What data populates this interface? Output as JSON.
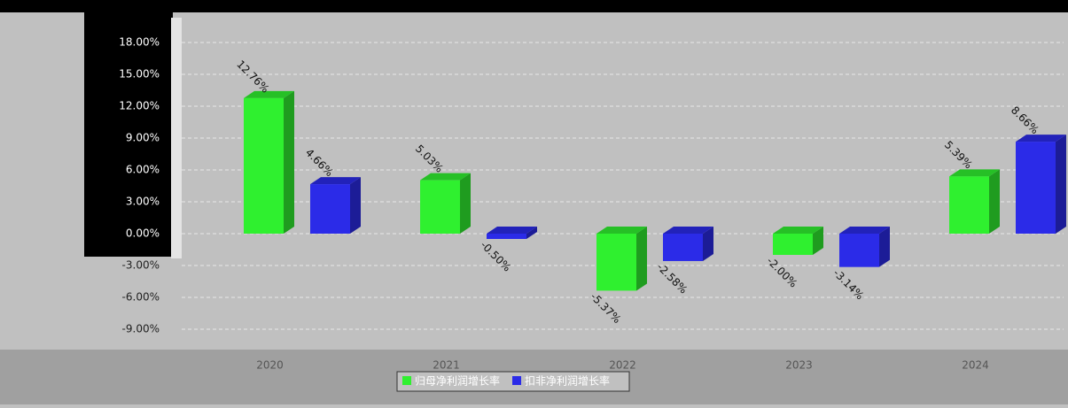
{
  "chart_data": {
    "type": "bar",
    "categories": [
      "2020",
      "2021",
      "2022",
      "2023",
      "2024"
    ],
    "series": [
      {
        "name": "归母净利润增长率",
        "color": "#2ff02f",
        "values": [
          12.76,
          5.03,
          -5.37,
          -2.0,
          5.39
        ],
        "value_labels": [
          "12.76%",
          "5.03%",
          "-5.37%",
          "-2.00%",
          "5.39%"
        ]
      },
      {
        "name": "扣非净利润增长率",
        "color": "#2b2be8",
        "values": [
          4.66,
          -0.5,
          -2.58,
          -3.14,
          8.66
        ],
        "value_labels": [
          "4.66%",
          "-0.50%",
          "-2.58%",
          "-3.14%",
          "8.66%"
        ]
      }
    ],
    "ylim": [
      -10.5,
      20
    ],
    "yticks": [
      {
        "value": -9,
        "label": "-9.00%"
      },
      {
        "value": -6,
        "label": "-6.00%"
      },
      {
        "value": -3,
        "label": "-3.00%"
      },
      {
        "value": 0,
        "label": "0.00%"
      },
      {
        "value": 3,
        "label": "3.00%"
      },
      {
        "value": 6,
        "label": "6.00%"
      },
      {
        "value": 9,
        "label": "9.00%"
      },
      {
        "value": 12,
        "label": "12.00%"
      },
      {
        "value": 15,
        "label": "15.00%"
      },
      {
        "value": 18,
        "label": "18.00%"
      }
    ],
    "grid": true
  }
}
